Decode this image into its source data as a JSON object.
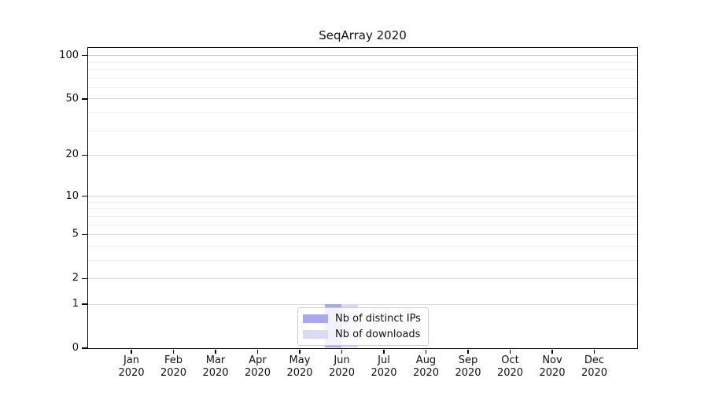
{
  "chart_data": {
    "type": "bar",
    "title": "SeqArray 2020",
    "categories": [
      "Jan",
      "Feb",
      "Mar",
      "Apr",
      "May",
      "Jun",
      "Jul",
      "Aug",
      "Sep",
      "Oct",
      "Nov",
      "Dec"
    ],
    "year_label": "2020",
    "series": [
      {
        "name": "Nb of distinct IPs",
        "color": "#a8a8ef",
        "values": [
          0,
          0,
          0,
          0,
          0,
          1,
          0,
          0,
          0,
          0,
          0,
          0
        ]
      },
      {
        "name": "Nb of downloads",
        "color": "#dadaf7",
        "values": [
          0,
          0,
          0,
          0,
          0,
          1,
          0,
          0,
          0,
          0,
          0,
          0
        ]
      }
    ],
    "xlabel": "",
    "ylabel": "",
    "y_scale": "log1p",
    "ylim": [
      0,
      113
    ],
    "y_major_ticks": [
      0,
      1,
      2,
      5,
      10,
      20,
      50,
      100
    ],
    "y_minor_gridlines": [
      3,
      4,
      6,
      7,
      8,
      9,
      30,
      40,
      60,
      70,
      80,
      90
    ],
    "grid": "horizontal",
    "legend_position": "bottom-center"
  },
  "colors": {
    "spine": "#000000",
    "grid_major": "#d9d9d9",
    "grid_100": "#c9c9c9",
    "grid_minor": "#f0f0f0",
    "text": "#111111",
    "legend_border": "#cccccc"
  }
}
